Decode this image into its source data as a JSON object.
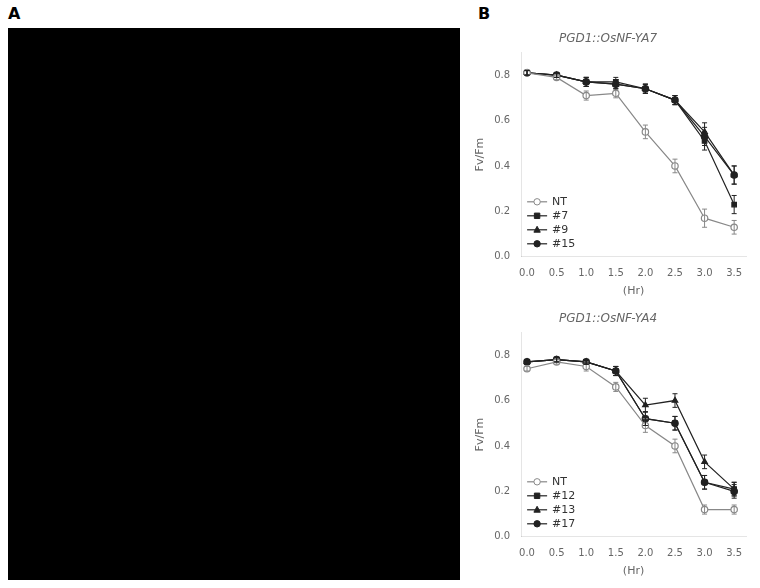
{
  "chart_data": [
    {
      "type": "line",
      "title": "PGD1::OsNF-YA7",
      "annotations": [
        "A",
        "B"
      ],
      "xlabel": "(Hr)",
      "ylabel": "Fv/Fm",
      "x": [
        0.0,
        0.5,
        1.0,
        1.5,
        2.0,
        2.5,
        3.0,
        3.5
      ],
      "xlim": [
        -0.1,
        3.7
      ],
      "ylim": [
        0.0,
        0.9
      ],
      "xticks": [
        {
          "value": 0.0,
          "label": "0.0"
        },
        0.5,
        {
          "value": 1.0,
          "label": "1.0"
        },
        1.5,
        {
          "value": 2.0,
          "label": "2.0"
        },
        2.5,
        {
          "value": 3.0,
          "label": "3.0"
        },
        3.5
      ],
      "yticks": [
        {
          "value": 0.0,
          "label": "0.0"
        },
        0.2,
        0.4,
        0.6,
        0.8
      ],
      "grid": false,
      "legend": "lower left",
      "series": [
        {
          "name": "NT",
          "color": "#888888",
          "marker": "circle_open",
          "line_style": "solid",
          "values": [
            0.81,
            0.79,
            0.71,
            0.72,
            0.55,
            0.4,
            0.17,
            0.13
          ],
          "errors": [
            0.01,
            0.01,
            0.02,
            0.02,
            0.03,
            0.03,
            0.04,
            0.03
          ]
        },
        {
          "name": "#7",
          "color": "#222222",
          "marker": "square",
          "line_style": "solid",
          "values": [
            0.81,
            0.8,
            0.77,
            0.77,
            0.74,
            0.69,
            0.51,
            0.23
          ],
          "errors": [
            0.01,
            0.01,
            0.02,
            0.02,
            0.02,
            0.02,
            0.04,
            0.04
          ]
        },
        {
          "name": "#9",
          "color": "#222222",
          "marker": "triangle",
          "line_style": "solid",
          "values": [
            0.81,
            0.8,
            0.77,
            0.76,
            0.74,
            0.69,
            0.55,
            0.36
          ],
          "errors": [
            0.01,
            0.01,
            0.02,
            0.02,
            0.02,
            0.02,
            0.04,
            0.04
          ]
        },
        {
          "name": "#15",
          "color": "#222222",
          "marker": "circle",
          "line_style": "solid",
          "values": [
            0.81,
            0.8,
            0.77,
            0.76,
            0.74,
            0.69,
            0.53,
            0.36
          ],
          "errors": [
            0.01,
            0.01,
            0.02,
            0.02,
            0.02,
            0.02,
            0.04,
            0.04
          ]
        }
      ]
    },
    {
      "type": "line",
      "title": "PGD1::OsNF-YA4",
      "xlabel": "(Hr)",
      "ylabel": "Fv/Fm",
      "x": [
        0.0,
        0.5,
        1.0,
        1.5,
        2.0,
        2.5,
        3.0,
        3.5
      ],
      "xlim": [
        -0.1,
        3.7
      ],
      "ylim": [
        0.0,
        0.9
      ],
      "xticks": [
        {
          "value": 0.0,
          "label": "0.0"
        },
        0.5,
        {
          "value": 1.0,
          "label": "1.0"
        },
        1.5,
        {
          "value": 2.0,
          "label": "2.0"
        },
        2.5,
        {
          "value": 3.0,
          "label": "3.0"
        },
        3.5
      ],
      "yticks": [
        {
          "value": 0.0,
          "label": "0.0"
        },
        0.2,
        0.4,
        0.6,
        0.8
      ],
      "grid": false,
      "legend": "lower left",
      "series": [
        {
          "name": "NT",
          "color": "#888888",
          "marker": "circle_open",
          "line_style": "solid",
          "values": [
            0.74,
            0.77,
            0.75,
            0.66,
            0.49,
            0.4,
            0.12,
            0.12
          ],
          "errors": [
            0.01,
            0.01,
            0.02,
            0.02,
            0.03,
            0.03,
            0.02,
            0.02
          ]
        },
        {
          "name": "#12",
          "color": "#222222",
          "marker": "square",
          "line_style": "solid",
          "values": [
            0.77,
            0.78,
            0.77,
            0.73,
            0.52,
            0.5,
            0.24,
            0.21
          ],
          "errors": [
            0.01,
            0.01,
            0.01,
            0.02,
            0.03,
            0.03,
            0.03,
            0.03
          ]
        },
        {
          "name": "#13",
          "color": "#222222",
          "marker": "triangle",
          "line_style": "solid",
          "values": [
            0.77,
            0.78,
            0.77,
            0.73,
            0.58,
            0.6,
            0.33,
            0.21
          ],
          "errors": [
            0.01,
            0.01,
            0.01,
            0.02,
            0.03,
            0.03,
            0.03,
            0.03
          ]
        },
        {
          "name": "#17",
          "color": "#222222",
          "marker": "circle",
          "line_style": "solid",
          "values": [
            0.77,
            0.78,
            0.77,
            0.73,
            0.52,
            0.5,
            0.24,
            0.2
          ],
          "errors": [
            0.01,
            0.01,
            0.01,
            0.02,
            0.03,
            0.03,
            0.03,
            0.03
          ]
        }
      ]
    }
  ]
}
